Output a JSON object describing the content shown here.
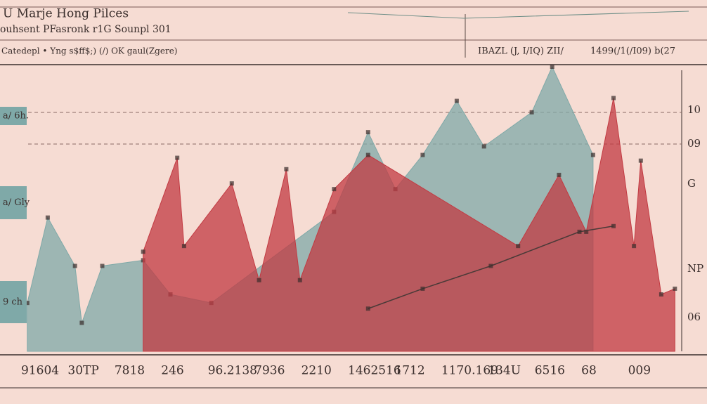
{
  "chart_data": {
    "type": "area",
    "title": "U Marje Hong Pilces",
    "subtitle": "ouhsent PFasronk r1G Sounpl 301",
    "legend_text": "Catedepl  •  Yng s$ff$;) (/) OK gaul(Zgere)",
    "top_right_texts": [
      "IBAZL (J, I/IQ) ZII/",
      "1499(/1(/I09) b(27"
    ],
    "left_labels": [
      "a/ 6h.",
      "a/ Gly",
      "9 ch"
    ],
    "right_labels": [
      "10",
      "09",
      "G",
      "NP",
      "06"
    ],
    "x_labels": [
      "91604",
      "30TP",
      "7818",
      "246",
      "96.2138",
      "7936",
      "2210",
      "1462516",
      "1712",
      "1170.169",
      "134U",
      "6516",
      "68",
      "009"
    ],
    "xlim": [
      0,
      100
    ],
    "ylim": [
      0,
      100
    ],
    "series": [
      {
        "color": "#7fa9a8",
        "x": [
          4,
          7,
          11,
          12,
          15,
          21,
          25,
          31,
          49,
          54,
          58,
          62,
          67,
          71,
          78,
          81,
          87
        ],
        "values": [
          17,
          47,
          30,
          10,
          30,
          32,
          20,
          17,
          49,
          77,
          57,
          69,
          88,
          72,
          84,
          100,
          69
        ]
      },
      {
        "color": "#c23a42",
        "x": [
          21,
          26,
          27,
          34,
          38,
          42,
          44,
          49,
          54,
          76,
          82,
          86,
          90,
          93,
          94,
          97,
          99
        ],
        "values": [
          35,
          68,
          37,
          59,
          25,
          64,
          25,
          57,
          69,
          37,
          62,
          42,
          89,
          37,
          67,
          20,
          22
        ]
      },
      {
        "color": "#4a3a38",
        "x": [
          54,
          62,
          72,
          85,
          90
        ],
        "values": [
          15,
          22,
          30,
          42,
          44
        ],
        "line": true
      }
    ]
  }
}
